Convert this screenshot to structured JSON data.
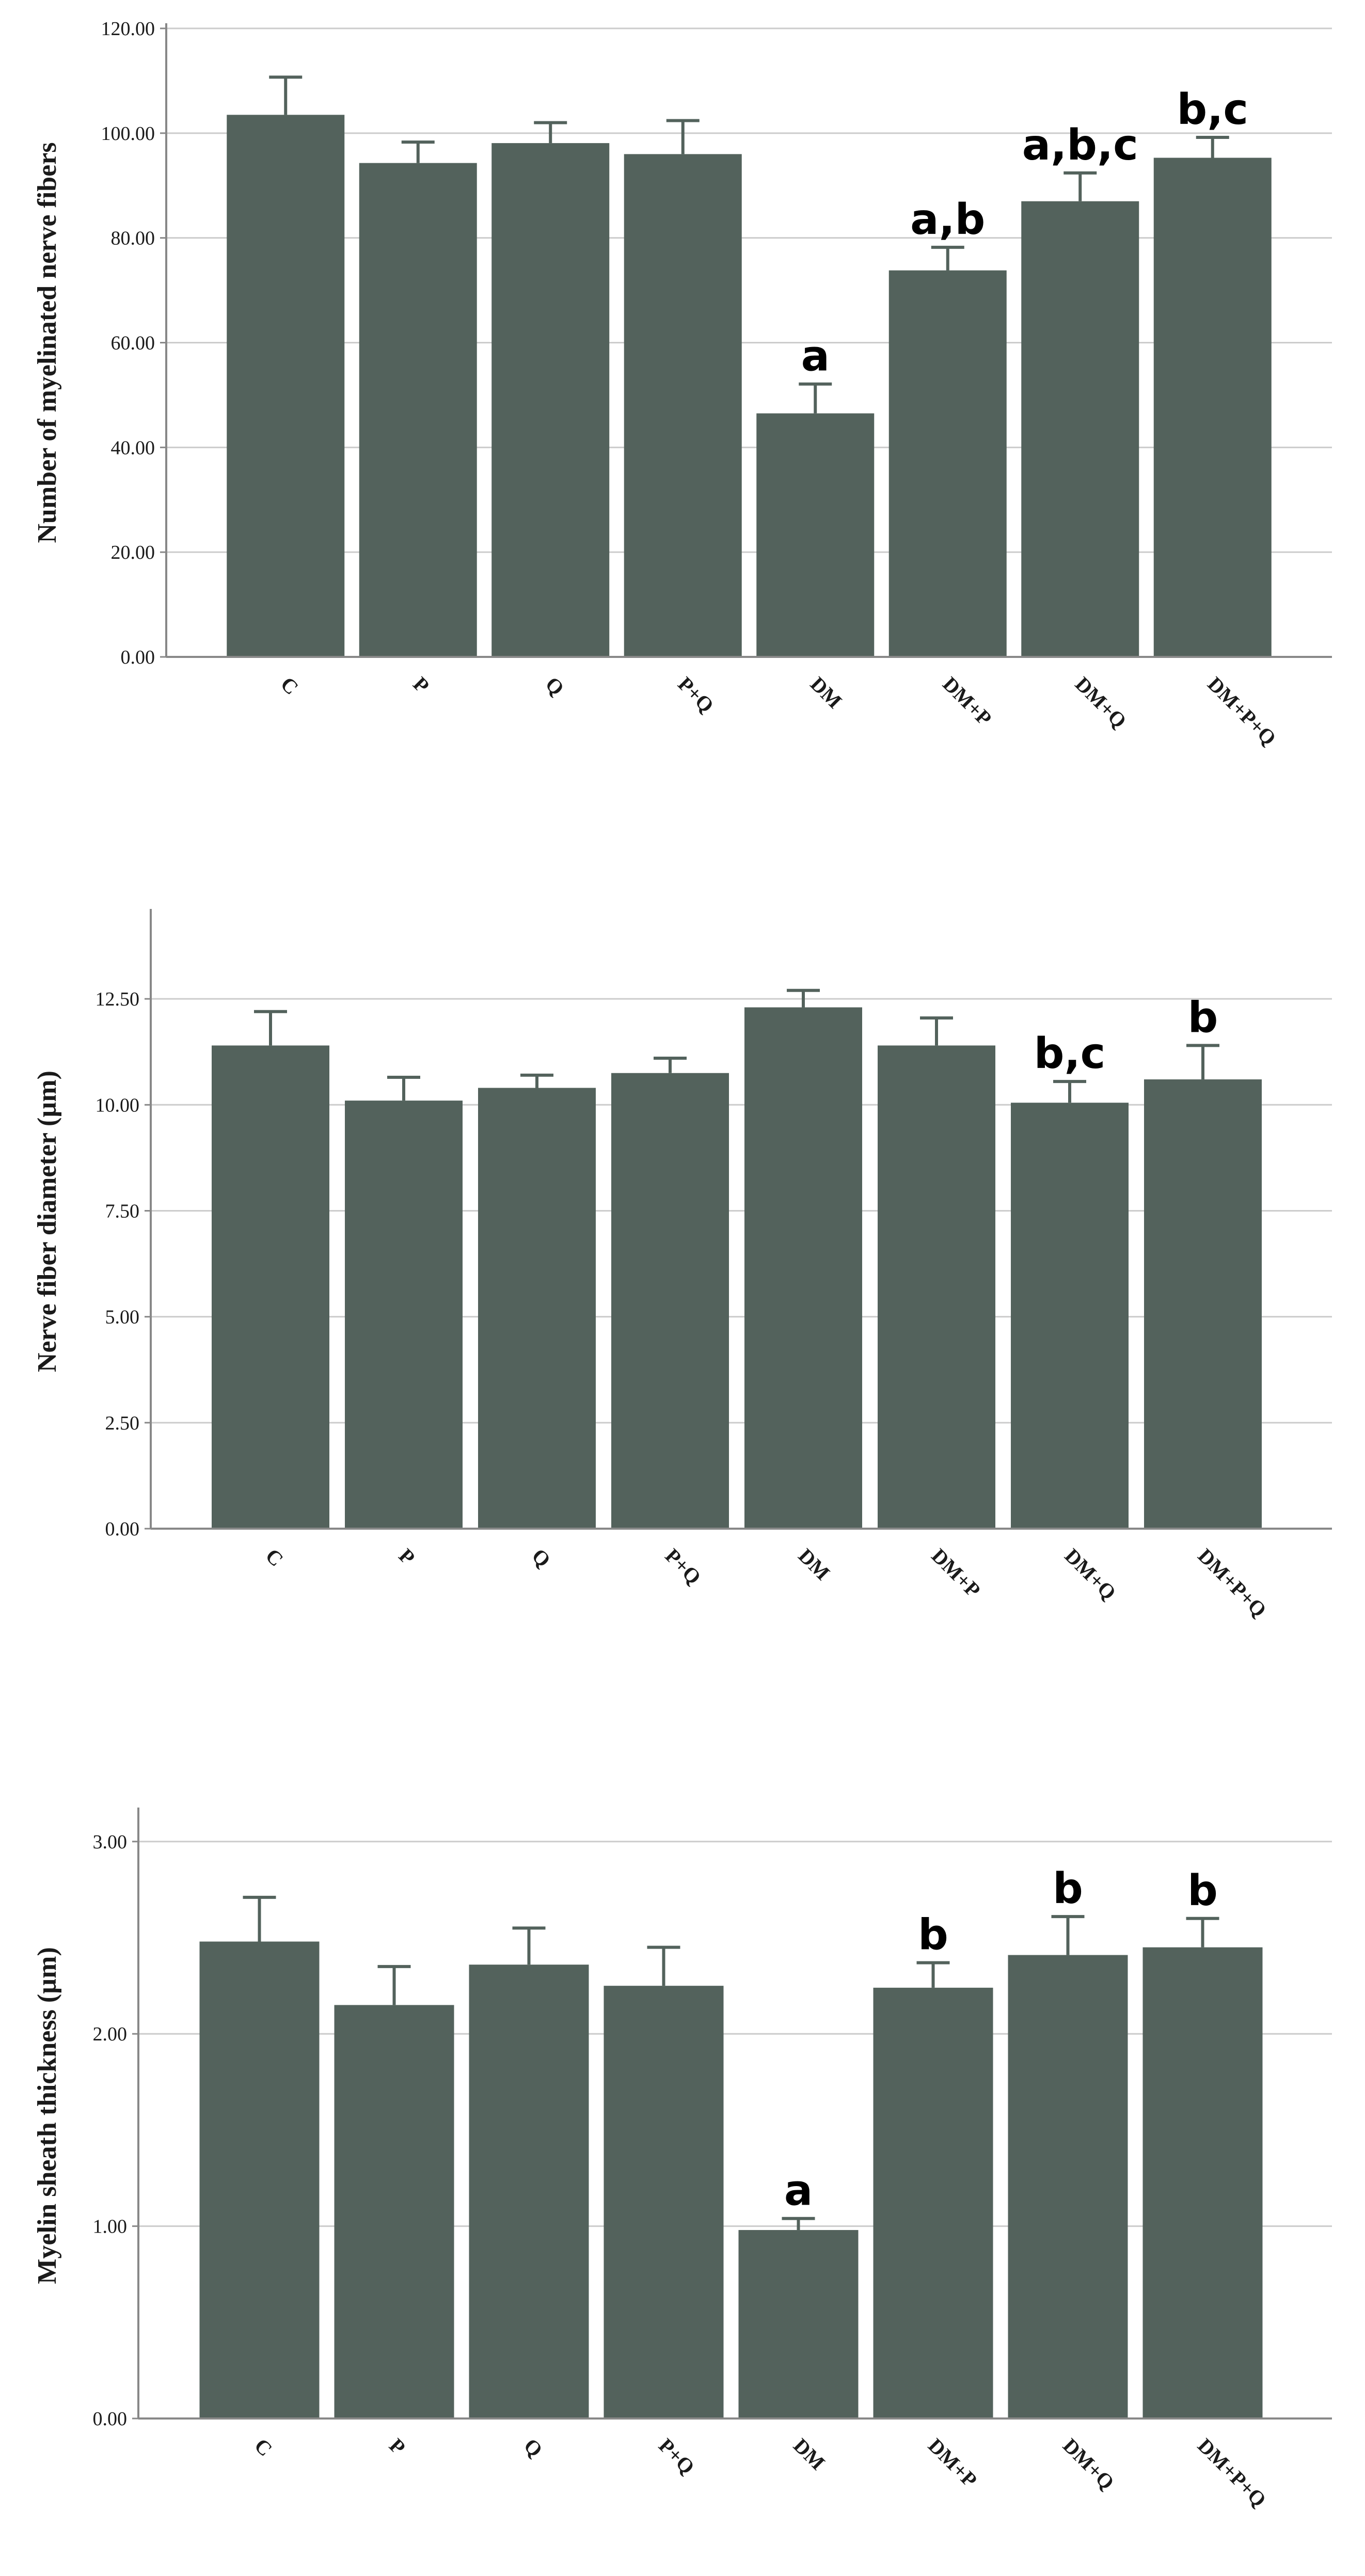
{
  "colors": {
    "bar": "#53625c",
    "error_bar": "#53625c",
    "grid": "#cccccc",
    "axis": "#888888",
    "text": "#1a1a1a"
  },
  "chart_data": [
    {
      "type": "bar",
      "ylabel": "Number of myelinated nerve fibers",
      "xlabel": "",
      "ylim": [
        0,
        120
      ],
      "y_ticks": [
        "0.00",
        "20.00",
        "40.00",
        "60.00",
        "80.00",
        "100.00",
        "120.00"
      ],
      "y_tick_values": [
        0,
        20,
        40,
        60,
        80,
        100,
        120
      ],
      "categories": [
        "C",
        "P",
        "Q",
        "P+Q",
        "DM",
        "DM+P",
        "DM+Q",
        "DM+P+Q"
      ],
      "values": [
        103.5,
        94.3,
        98.1,
        96.0,
        46.5,
        73.8,
        87.0,
        95.3
      ],
      "errors": [
        7.2,
        4.0,
        3.9,
        6.4,
        5.6,
        4.4,
        5.4,
        3.9
      ],
      "annotations": [
        "",
        "",
        "",
        "",
        "a",
        "a,b",
        "a,b,c",
        "b,c"
      ],
      "grid": true
    },
    {
      "type": "bar",
      "ylabel": "Nerve fiber diameter (µm)",
      "xlabel": "",
      "ylim": [
        0,
        14.5
      ],
      "y_ticks": [
        "0.00",
        "2.50",
        "5.00",
        "7.50",
        "10.00",
        "12.50"
      ],
      "y_tick_values": [
        0,
        2.5,
        5.0,
        7.5,
        10.0,
        12.5
      ],
      "categories": [
        "C",
        "P",
        "Q",
        "P+Q",
        "DM",
        "DM+P",
        "DM+Q",
        "DM+P+Q"
      ],
      "values": [
        11.4,
        10.1,
        10.4,
        10.75,
        12.3,
        11.4,
        10.05,
        10.6
      ],
      "errors": [
        0.8,
        0.55,
        0.3,
        0.35,
        0.4,
        0.65,
        0.5,
        0.8
      ],
      "annotations": [
        "",
        "",
        "",
        "",
        "",
        "",
        "b,c",
        "b"
      ],
      "grid": true
    },
    {
      "type": "bar",
      "ylabel": "Myelin sheath thickness (µm)",
      "xlabel": "",
      "ylim": [
        0,
        3.15
      ],
      "y_ticks": [
        "0.00",
        "1.00",
        "2.00",
        "3.00"
      ],
      "y_tick_values": [
        0,
        1.0,
        2.0,
        3.0
      ],
      "categories": [
        "C",
        "P",
        "Q",
        "P+Q",
        "DM",
        "DM+P",
        "DM+Q",
        "DM+P+Q"
      ],
      "values": [
        2.48,
        2.15,
        2.36,
        2.25,
        0.98,
        2.24,
        2.41,
        2.45
      ],
      "errors": [
        0.23,
        0.2,
        0.19,
        0.2,
        0.06,
        0.13,
        0.2,
        0.15
      ],
      "annotations": [
        "",
        "",
        "",
        "",
        "a",
        "b",
        "b",
        "b"
      ],
      "grid": true
    }
  ]
}
